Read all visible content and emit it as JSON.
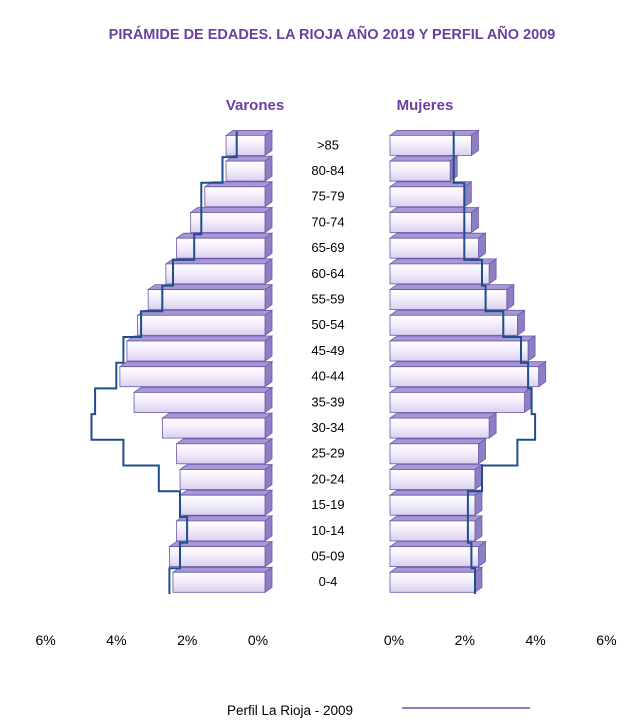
{
  "chart_data": {
    "type": "bar",
    "title": "PIRÁMIDE DE EDADES. LA RIOJA AÑO 2019 Y PERFIL AÑO 2009",
    "left_label": "Varones",
    "right_label": "Mujeres",
    "categories": [
      "0-4",
      "05-09",
      "10-14",
      "15-19",
      "20-24",
      "25-29",
      "30-34",
      "35-39",
      "40-44",
      "45-49",
      "50-54",
      "55-59",
      "60-64",
      "65-69",
      "70-74",
      "75-79",
      "80-84",
      ">85"
    ],
    "x_ticks_left": [
      "6%",
      "4%",
      "2%",
      "0%"
    ],
    "x_ticks_right": [
      "0%",
      "2%",
      "4%",
      "6%"
    ],
    "xlim": [
      0,
      6
    ],
    "series": [
      {
        "group": "Varones",
        "year": "2019",
        "values": [
          2.6,
          2.7,
          2.5,
          2.4,
          2.4,
          2.5,
          2.9,
          3.7,
          4.1,
          3.9,
          3.6,
          3.3,
          2.8,
          2.5,
          2.1,
          1.7,
          1.1,
          1.1
        ]
      },
      {
        "group": "Mujeres",
        "year": "2019",
        "values": [
          2.4,
          2.5,
          2.4,
          2.4,
          2.4,
          2.5,
          2.8,
          3.8,
          4.2,
          3.9,
          3.6,
          3.3,
          2.8,
          2.5,
          2.3,
          2.1,
          1.7,
          2.3
        ]
      },
      {
        "group": "Varones",
        "name": "Perfil La Rioja - 2009",
        "values": [
          2.7,
          2.4,
          2.2,
          2.4,
          3.0,
          4.0,
          4.9,
          4.8,
          4.2,
          4.0,
          3.5,
          2.9,
          2.6,
          2.0,
          1.8,
          1.8,
          1.2,
          0.8
        ]
      },
      {
        "group": "Mujeres",
        "name": "Perfil La Rioja - 2009",
        "values": [
          2.4,
          2.3,
          2.2,
          2.2,
          2.6,
          3.6,
          4.1,
          4.0,
          3.9,
          3.7,
          3.2,
          2.7,
          2.6,
          2.1,
          2.1,
          2.1,
          1.8,
          1.8
        ]
      }
    ],
    "legend": {
      "label": "Perfil La Rioja - 2009",
      "placement": "bottom"
    },
    "colors": {
      "bar_fill": "#ece6f7",
      "bar_top": "#a896d6",
      "bar_side": "#8e7ec4",
      "bar_stroke": "#6a5aa8",
      "profile_line": "#1f4e8c",
      "title": "#6b3fa0"
    }
  }
}
